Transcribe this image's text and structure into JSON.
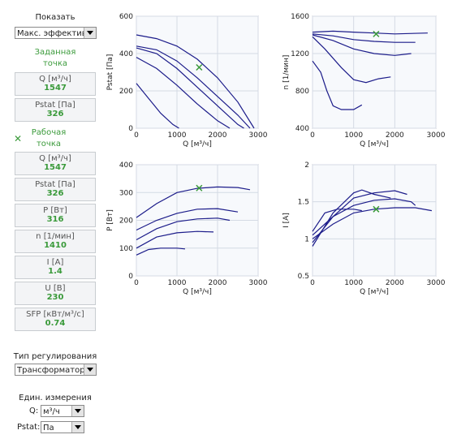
{
  "panel": {
    "show_label": "Показать",
    "show_select": "Макс. эффектив",
    "target": {
      "title": "Заданная точка",
      "items": [
        {
          "label": "Q [м³/ч]",
          "value": 1547
        },
        {
          "label": "Pstat [Па]",
          "value": 326
        }
      ]
    },
    "operating": {
      "title": "Рабочая точка",
      "items": [
        {
          "label": "Q [м³/ч]",
          "value": 1547
        },
        {
          "label": "Pstat [Па]",
          "value": 326
        },
        {
          "label": "P [Вт]",
          "value": 316
        },
        {
          "label": "n [1/мин]",
          "value": 1410
        },
        {
          "label": "I [А]",
          "value": 1.4
        },
        {
          "label": "U [В]",
          "value": 230
        },
        {
          "label": "SFP [кВт/м³/с]",
          "value": 0.74
        }
      ]
    },
    "control_label": "Тип регулирования",
    "control_select": "Трансформатор",
    "units_label": "Един. измерения",
    "q_label": "Q:",
    "q_select": "м³/ч",
    "p_label": "Pstat:",
    "p_select": "Па"
  },
  "chart_data": [
    {
      "type": "line",
      "xlabel": "Q [м³/ч]",
      "ylabel": "Pstat [Па]",
      "xlim": [
        0,
        3000
      ],
      "xticks": [
        0,
        1000,
        2000,
        3000
      ],
      "ylim": [
        0,
        600
      ],
      "yticks": [
        0,
        200,
        400,
        600
      ],
      "grid": true,
      "series": [
        {
          "color": "#1c1c8a",
          "x": [
            0,
            500,
            1000,
            1500,
            2000,
            2500,
            2900
          ],
          "values": [
            500,
            480,
            440,
            370,
            270,
            140,
            0
          ]
        },
        {
          "color": "#1c1c8a",
          "x": [
            0,
            500,
            1000,
            1500,
            2000,
            2500,
            2800
          ],
          "values": [
            440,
            420,
            360,
            270,
            170,
            70,
            0
          ]
        },
        {
          "color": "#1c1c8a",
          "x": [
            0,
            500,
            1000,
            1500,
            2000,
            2500,
            2650
          ],
          "values": [
            430,
            400,
            320,
            220,
            120,
            20,
            0
          ]
        },
        {
          "color": "#1c1c8a",
          "x": [
            0,
            500,
            1000,
            1500,
            2000,
            2300
          ],
          "values": [
            380,
            320,
            230,
            130,
            40,
            0
          ]
        },
        {
          "color": "#1c1c8a",
          "x": [
            0,
            300,
            600,
            900,
            1050
          ],
          "values": [
            240,
            160,
            80,
            20,
            0
          ]
        }
      ],
      "marker": {
        "x": 1547,
        "y": 326,
        "color": "#3a9a3a"
      }
    },
    {
      "type": "line",
      "xlabel": "Q [м³/ч]",
      "ylabel": "n [1/мин]",
      "xlim": [
        0,
        3000
      ],
      "xticks": [
        0,
        1000,
        2000,
        3000
      ],
      "ylim": [
        400,
        1600
      ],
      "yticks": [
        400,
        800,
        1200,
        1600
      ],
      "grid": true,
      "series": [
        {
          "color": "#1c1c8a",
          "x": [
            0,
            500,
            1000,
            1500,
            2000,
            2800
          ],
          "values": [
            1430,
            1440,
            1430,
            1420,
            1410,
            1420
          ]
        },
        {
          "color": "#1c1c8a",
          "x": [
            0,
            500,
            1000,
            1500,
            2000,
            2500
          ],
          "values": [
            1410,
            1390,
            1350,
            1330,
            1320,
            1320
          ]
        },
        {
          "color": "#1c1c8a",
          "x": [
            0,
            500,
            1000,
            1500,
            2000,
            2400
          ],
          "values": [
            1400,
            1340,
            1250,
            1200,
            1180,
            1200
          ]
        },
        {
          "color": "#1c1c8a",
          "x": [
            0,
            300,
            700,
            1000,
            1300,
            1600,
            1900
          ],
          "values": [
            1380,
            1250,
            1050,
            920,
            890,
            930,
            950
          ]
        },
        {
          "color": "#1c1c8a",
          "x": [
            0,
            200,
            350,
            500,
            700,
            1000,
            1200
          ],
          "values": [
            1120,
            1000,
            800,
            640,
            600,
            600,
            650
          ]
        }
      ],
      "marker": {
        "x": 1547,
        "y": 1410,
        "color": "#3a9a3a"
      }
    },
    {
      "type": "line",
      "xlabel": "Q [м³/ч]",
      "ylabel": "P [Вт]",
      "xlim": [
        0,
        3000
      ],
      "xticks": [
        0,
        1000,
        2000,
        3000
      ],
      "ylim": [
        0,
        400
      ],
      "yticks": [
        0,
        100,
        200,
        300,
        400
      ],
      "grid": true,
      "series": [
        {
          "color": "#1c1c8a",
          "x": [
            0,
            500,
            1000,
            1500,
            2000,
            2500,
            2800
          ],
          "values": [
            210,
            260,
            300,
            315,
            320,
            318,
            310
          ]
        },
        {
          "color": "#1c1c8a",
          "x": [
            0,
            500,
            1000,
            1500,
            2000,
            2500
          ],
          "values": [
            165,
            200,
            225,
            240,
            242,
            230
          ]
        },
        {
          "color": "#1c1c8a",
          "x": [
            0,
            500,
            1000,
            1500,
            2000,
            2300
          ],
          "values": [
            130,
            170,
            195,
            205,
            208,
            200
          ]
        },
        {
          "color": "#1c1c8a",
          "x": [
            0,
            500,
            1000,
            1500,
            1900
          ],
          "values": [
            100,
            140,
            155,
            160,
            158
          ]
        },
        {
          "color": "#1c1c8a",
          "x": [
            0,
            300,
            600,
            1000,
            1200
          ],
          "values": [
            75,
            95,
            100,
            100,
            97
          ]
        }
      ],
      "marker": {
        "x": 1547,
        "y": 316,
        "color": "#3a9a3a"
      }
    },
    {
      "type": "line",
      "xlabel": "Q [м³/ч]",
      "ylabel": "I [А]",
      "xlim": [
        0,
        3000
      ],
      "xticks": [
        0,
        1000,
        2000,
        3000
      ],
      "ylim": [
        0.5,
        2
      ],
      "yticks": [
        0.5,
        1,
        1.5,
        2
      ],
      "grid": true,
      "series": [
        {
          "color": "#1c1c8a",
          "x": [
            0,
            500,
            1000,
            1500,
            2000,
            2500,
            2900
          ],
          "values": [
            1.0,
            1.2,
            1.35,
            1.4,
            1.42,
            1.42,
            1.38
          ]
        },
        {
          "color": "#1c1c8a",
          "x": [
            0,
            500,
            1000,
            1500,
            2000,
            2400,
            2500
          ],
          "values": [
            1.05,
            1.3,
            1.45,
            1.52,
            1.54,
            1.5,
            1.45
          ]
        },
        {
          "color": "#1c1c8a",
          "x": [
            0,
            500,
            1000,
            1500,
            2000,
            2300
          ],
          "values": [
            0.95,
            1.3,
            1.55,
            1.62,
            1.65,
            1.6
          ]
        },
        {
          "color": "#1c1c8a",
          "x": [
            0,
            500,
            1000,
            1200,
            1500,
            1900
          ],
          "values": [
            0.9,
            1.35,
            1.62,
            1.66,
            1.6,
            1.55
          ]
        },
        {
          "color": "#1c1c8a",
          "x": [
            0,
            300,
            600,
            1000,
            1200
          ],
          "values": [
            1.1,
            1.35,
            1.4,
            1.4,
            1.38
          ]
        }
      ],
      "marker": {
        "x": 1547,
        "y": 1.4,
        "color": "#3a9a3a"
      }
    }
  ]
}
